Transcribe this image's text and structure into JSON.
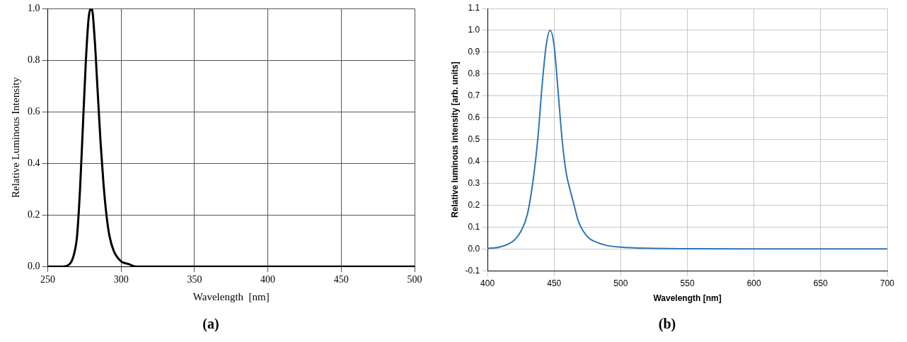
{
  "chart_data": [
    {
      "type": "line",
      "title": "(a)",
      "x_label": "Wavelength  [nm]",
      "y_label": "Relative Luminous Intensity",
      "x": [
        250,
        260,
        265,
        268,
        270,
        272,
        274,
        276,
        278,
        280,
        282,
        284,
        286,
        288,
        290,
        292,
        295,
        300,
        305,
        310,
        350,
        400,
        450,
        500
      ],
      "values": [
        0,
        0,
        0.01,
        0.05,
        0.12,
        0.3,
        0.55,
        0.8,
        0.97,
        1.0,
        0.88,
        0.68,
        0.48,
        0.32,
        0.2,
        0.12,
        0.06,
        0.02,
        0.01,
        0,
        0,
        0,
        0,
        0
      ],
      "color": "#000000",
      "xlim": [
        250,
        500
      ],
      "xticks": [
        250,
        300,
        350,
        400,
        450,
        500
      ],
      "ylim": [
        0,
        1.0
      ],
      "yticks": [
        {
          "value": 0,
          "label": "0.0"
        },
        0.2,
        0.4,
        0.6,
        0.8,
        {
          "value": 1.0,
          "label": "1.0"
        }
      ],
      "grid": true
    },
    {
      "type": "line",
      "title": "(b)",
      "x_label": "Wavelength [nm]",
      "y_label": "Relative luminous intensity [arb. units]",
      "x": [
        400,
        410,
        420,
        425,
        430,
        435,
        438,
        441,
        444,
        447,
        450,
        453,
        456,
        459,
        462,
        465,
        468,
        472,
        476,
        480,
        490,
        500,
        520,
        550,
        600,
        650,
        700
      ],
      "values": [
        0.002,
        0.01,
        0.04,
        0.08,
        0.16,
        0.35,
        0.52,
        0.75,
        0.93,
        1.0,
        0.93,
        0.72,
        0.5,
        0.35,
        0.27,
        0.2,
        0.13,
        0.08,
        0.05,
        0.035,
        0.015,
        0.008,
        0.003,
        0.001,
        0,
        0,
        0
      ],
      "color": "#2e75b6",
      "xlim": [
        400,
        700
      ],
      "xticks": [
        400,
        450,
        500,
        550,
        600,
        650,
        700
      ],
      "ylim": [
        -0.1,
        1.1
      ],
      "yticks": [
        -0.1,
        {
          "value": 0,
          "label": "0.0"
        },
        0.1,
        0.2,
        0.3,
        0.4,
        0.5,
        0.6,
        0.7,
        0.8,
        0.9,
        {
          "value": 1.0,
          "label": "1.0"
        },
        1.1
      ],
      "grid": true
    }
  ]
}
